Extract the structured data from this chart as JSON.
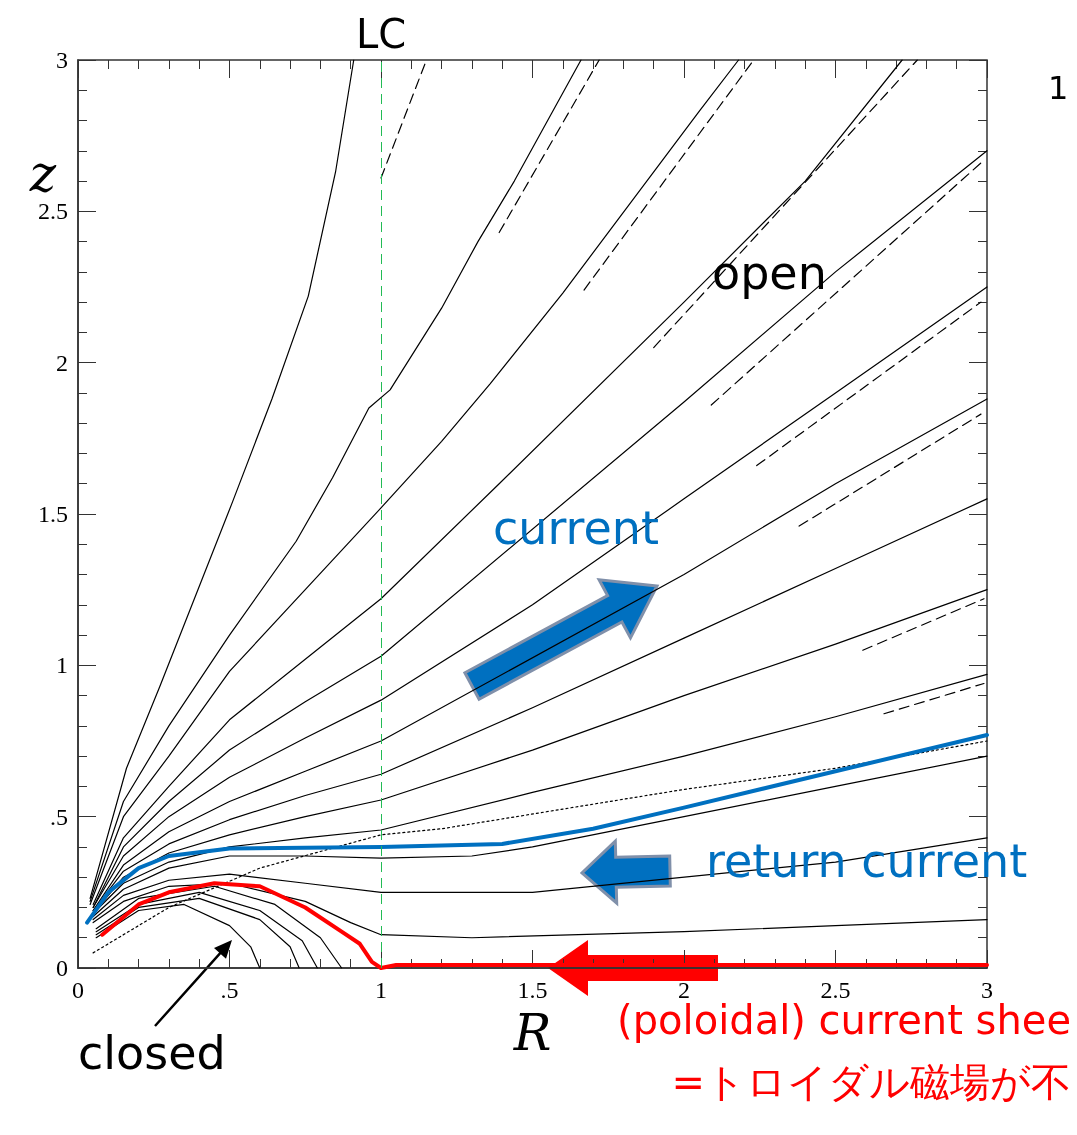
{
  "chart_data": {
    "type": "line",
    "xlabel": "R",
    "ylabel": "z",
    "xlim": [
      0,
      3
    ],
    "ylim": [
      0,
      3
    ],
    "xticks": [
      0,
      {
        "value": 0.1,
        "label": null
      },
      {
        "value": 0.2,
        "label": null
      },
      {
        "value": 0.3,
        "label": null
      },
      {
        "value": 0.4,
        "label": null
      },
      {
        "value": 0.5,
        "label": ".5"
      },
      {
        "value": 0.6,
        "label": null
      },
      {
        "value": 0.7,
        "label": null
      },
      {
        "value": 0.8,
        "label": null
      },
      {
        "value": 0.9,
        "label": null
      },
      1,
      {
        "value": 1.1,
        "label": null
      },
      {
        "value": 1.2,
        "label": null
      },
      {
        "value": 1.3,
        "label": null
      },
      {
        "value": 1.4,
        "label": null
      },
      1.5,
      {
        "value": 1.6,
        "label": null
      },
      {
        "value": 1.7,
        "label": null
      },
      {
        "value": 1.8,
        "label": null
      },
      {
        "value": 1.9,
        "label": null
      },
      2,
      {
        "value": 2.1,
        "label": null
      },
      {
        "value": 2.2,
        "label": null
      },
      {
        "value": 2.3,
        "label": null
      },
      {
        "value": 2.4,
        "label": null
      },
      2.5,
      {
        "value": 2.6,
        "label": null
      },
      {
        "value": 2.7,
        "label": null
      },
      {
        "value": 2.8,
        "label": null
      },
      {
        "value": 2.9,
        "label": null
      },
      3
    ],
    "yticks": [
      0,
      {
        "value": 0.1,
        "label": null
      },
      {
        "value": 0.2,
        "label": null
      },
      {
        "value": 0.3,
        "label": null
      },
      {
        "value": 0.4,
        "label": null
      },
      {
        "value": 0.5,
        "label": ".5"
      },
      {
        "value": 0.6,
        "label": null
      },
      {
        "value": 0.7,
        "label": null
      },
      {
        "value": 0.8,
        "label": null
      },
      {
        "value": 0.9,
        "label": null
      },
      1,
      {
        "value": 1.1,
        "label": null
      },
      {
        "value": 1.2,
        "label": null
      },
      {
        "value": 1.3,
        "label": null
      },
      {
        "value": 1.4,
        "label": null
      },
      1.5,
      {
        "value": 1.6,
        "label": null
      },
      {
        "value": 1.7,
        "label": null
      },
      {
        "value": 1.8,
        "label": null
      },
      {
        "value": 1.9,
        "label": null
      },
      2,
      {
        "value": 2.1,
        "label": null
      },
      {
        "value": 2.2,
        "label": null
      },
      {
        "value": 2.3,
        "label": null
      },
      {
        "value": 2.4,
        "label": null
      },
      2.5,
      {
        "value": 2.6,
        "label": null
      },
      {
        "value": 2.7,
        "label": null
      },
      {
        "value": 2.8,
        "label": null
      },
      {
        "value": 2.9,
        "label": null
      },
      3
    ],
    "grid": false,
    "marker": "none",
    "series": [
      {
        "color": "#000000",
        "x": [
          0.04,
          0.16,
          0.27,
          0.51,
          0.64,
          0.76,
          0.85,
          0.91
        ],
        "values": [
          0.23,
          0.66,
          0.93,
          1.54,
          1.88,
          2.22,
          2.63,
          3.0
        ]
      },
      {
        "color": "#000000",
        "x": [
          0.04,
          0.15,
          0.3,
          0.5,
          0.72,
          0.84,
          0.96,
          1.03,
          1.2,
          1.32,
          1.44,
          1.66
        ],
        "values": [
          0.22,
          0.55,
          0.8,
          1.1,
          1.41,
          1.62,
          1.85,
          1.91,
          2.18,
          2.4,
          2.6,
          3.0
        ]
      },
      {
        "color": "#000000",
        "x": [
          0.04,
          0.15,
          0.3,
          0.5,
          0.75,
          1.0,
          1.2,
          1.36,
          1.6,
          2.05,
          2.18
        ],
        "values": [
          0.21,
          0.5,
          0.7,
          0.98,
          1.25,
          1.52,
          1.74,
          1.93,
          2.23,
          2.83,
          3.0
        ]
      },
      {
        "color": "#000000",
        "x": [
          0.05,
          0.15,
          0.3,
          0.5,
          0.75,
          1.0,
          1.39,
          2.0,
          2.4,
          2.72
        ],
        "values": [
          0.21,
          0.43,
          0.6,
          0.82,
          1.02,
          1.22,
          1.6,
          2.2,
          2.6,
          3.0
        ]
      },
      {
        "color": "#000000",
        "x": [
          0.05,
          0.15,
          0.3,
          0.5,
          0.75,
          1.0,
          1.5,
          2.0,
          2.5,
          3.0
        ],
        "values": [
          0.2,
          0.4,
          0.55,
          0.72,
          0.88,
          1.03,
          null,
          1.87,
          2.3,
          2.7
        ]
      },
      {
        "color": "#000000",
        "x": [
          0.05,
          0.15,
          0.3,
          0.5,
          0.75,
          1.0,
          1.5,
          2.0,
          2.5,
          3.0
        ],
        "values": [
          0.2,
          0.37,
          0.5,
          0.63,
          0.76,
          0.885,
          1.2,
          1.55,
          1.9,
          2.25
        ]
      },
      {
        "color": "#000000",
        "x": [
          0.05,
          0.15,
          0.3,
          0.5,
          0.75,
          1.0,
          1.5,
          2.0,
          2.5,
          3.0
        ],
        "values": [
          0.19,
          0.34,
          0.45,
          0.55,
          0.65,
          0.75,
          null,
          1.3,
          1.6,
          1.88
        ]
      },
      {
        "color": "#000000",
        "x": [
          0.05,
          0.15,
          0.3,
          0.5,
          0.75,
          1.0,
          1.5,
          2.0,
          2.5,
          3.0
        ],
        "values": [
          0.19,
          0.32,
          0.41,
          0.49,
          0.57,
          0.64,
          0.86,
          1.09,
          1.32,
          1.55
        ]
      },
      {
        "color": "#000000",
        "x": [
          0.05,
          0.15,
          0.3,
          0.5,
          0.75,
          1.0,
          1.5,
          2.0,
          2.5,
          3.0
        ],
        "values": [
          0.18,
          0.3,
          0.38,
          0.44,
          0.5,
          0.555,
          0.72,
          0.9,
          1.07,
          1.25
        ]
      },
      {
        "color": "#000000",
        "x": [
          0.05,
          0.15,
          0.3,
          0.5,
          0.75,
          1.0,
          1.5,
          2.0,
          2.5,
          3.0
        ],
        "values": [
          0.18,
          0.28,
          0.35,
          0.4,
          0.43,
          0.456,
          0.58,
          0.7,
          0.83,
          0.97
        ]
      },
      {
        "color": "#000000",
        "x": [
          0.05,
          0.15,
          0.3,
          0.5,
          0.75,
          1.0,
          1.3,
          1.5,
          2.0,
          2.5,
          3.0
        ],
        "values": [
          0.17,
          0.26,
          0.33,
          0.37,
          0.37,
          0.363,
          0.37,
          0.4,
          0.5,
          0.6,
          0.7
        ]
      },
      {
        "color": "#000000",
        "x": [
          0.05,
          0.15,
          0.3,
          0.5,
          0.75,
          1.0,
          1.5,
          2.0,
          2.5,
          3.0
        ],
        "values": [
          0.16,
          0.24,
          0.29,
          0.31,
          0.28,
          0.25,
          0.25,
          null,
          0.35,
          0.43
        ]
      },
      {
        "color": "#000000",
        "x": [
          0.05,
          0.15,
          0.3,
          0.5,
          0.75,
          0.9,
          1.0,
          1.3,
          2.0,
          2.5,
          3.0
        ],
        "values": [
          0.15,
          0.22,
          0.27,
          0.28,
          0.22,
          0.15,
          0.11,
          0.1,
          0.12,
          0.14,
          0.16
        ]
      },
      {
        "color": "#000000",
        "x": [
          0.06,
          0.2,
          0.35,
          0.5,
          0.57,
          0.6
        ],
        "values": [
          0.1,
          0.19,
          0.21,
          0.14,
          0.07,
          0.0
        ]
      },
      {
        "color": "#000000",
        "x": [
          0.06,
          0.2,
          0.4,
          0.6,
          0.7,
          0.73
        ],
        "values": [
          0.11,
          0.2,
          0.23,
          0.16,
          0.07,
          0.0
        ]
      },
      {
        "color": "#000000",
        "x": [
          0.06,
          0.2,
          0.4,
          0.6,
          0.74,
          0.79
        ],
        "values": [
          0.12,
          0.21,
          0.25,
          0.19,
          0.09,
          0.0
        ]
      },
      {
        "color": "#000000",
        "x": [
          0.06,
          0.2,
          0.45,
          0.65,
          0.8,
          0.87
        ],
        "values": [
          0.13,
          0.23,
          0.27,
          0.21,
          0.1,
          0.0
        ]
      },
      {
        "color": "#000000",
        "line_style": "dotted",
        "x": [
          0.05,
          0.3,
          0.6,
          1.0,
          1.2,
          2.0,
          2.5,
          3.0
        ],
        "values": [
          0.05,
          0.2,
          0.33,
          0.44,
          0.46,
          0.59,
          0.66,
          0.75
        ]
      },
      {
        "color": "#000000",
        "line_style": "dashed",
        "x": [
          1.0,
          1.15
        ],
        "values": [
          2.61,
          3.0
        ]
      },
      {
        "color": "#000000",
        "line_style": "dashed",
        "x": [
          1.39,
          1.72
        ],
        "values": [
          2.43,
          3.0
        ]
      },
      {
        "color": "#000000",
        "line_style": "dashed",
        "x": [
          1.67,
          2.23
        ],
        "values": [
          2.24,
          3.0
        ]
      },
      {
        "color": "#000000",
        "line_style": "dashed",
        "x": [
          1.9,
          2.77
        ],
        "values": [
          2.05,
          3.0
        ]
      },
      {
        "color": "#000000",
        "line_style": "dashed",
        "x": [
          2.09,
          2.98
        ],
        "values": [
          1.86,
          2.66
        ]
      },
      {
        "color": "#000000",
        "line_style": "dashed",
        "x": [
          2.24,
          2.98
        ],
        "values": [
          1.66,
          2.2
        ]
      },
      {
        "color": "#000000",
        "line_style": "dashed",
        "x": [
          2.38,
          2.98
        ],
        "values": [
          1.46,
          1.83
        ]
      },
      {
        "color": "#000000",
        "line_style": "dashed",
        "x": [
          2.59,
          2.99
        ],
        "values": [
          1.05,
          1.22
        ]
      },
      {
        "color": "#000000",
        "line_style": "dashed",
        "x": [
          2.66,
          2.99
        ],
        "values": [
          0.84,
          0.94
        ]
      },
      {
        "color": "#0070c0",
        "x": [
          0.03,
          0.1,
          0.2,
          0.3,
          0.5,
          1.0,
          1.4,
          1.7,
          2.0,
          2.5,
          3.0
        ],
        "values": [
          0.15,
          0.25,
          0.33,
          0.37,
          0.395,
          0.4,
          0.41,
          0.46,
          0.53,
          0.65,
          0.77
        ]
      },
      {
        "color": "#ff0000",
        "x": [
          0.08,
          0.2,
          0.3,
          0.45,
          0.6,
          0.75,
          0.87,
          0.93,
          0.97,
          1.0,
          1.05,
          3.0
        ],
        "values": [
          0.11,
          0.21,
          0.25,
          0.28,
          0.27,
          0.2,
          0.12,
          0.08,
          0.02,
          0.0,
          0.01,
          0.01
        ]
      }
    ],
    "ref_lines": [
      {
        "axis": "x",
        "value": 1,
        "label": "LC",
        "color": "#22bb55",
        "line_style": "dashed"
      }
    ],
    "annotations": [
      "1",
      "open",
      "current",
      "return current",
      "closed",
      "(poloidal) current shee",
      "=トロイダル磁場が不"
    ]
  }
}
